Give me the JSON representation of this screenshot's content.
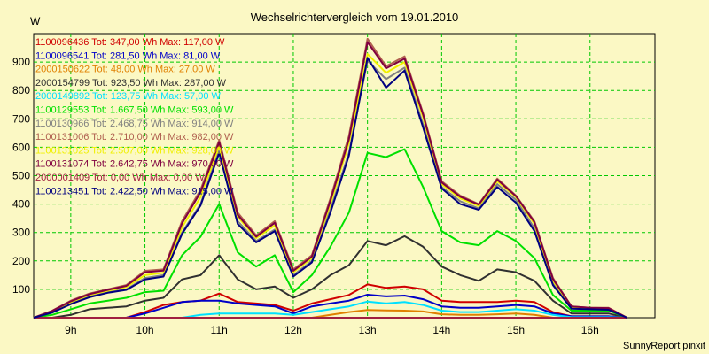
{
  "chart_data": {
    "type": "line",
    "title": "Wechselrichtervergleich vom 19.01.2010",
    "ylabel": "W",
    "xlabel": "",
    "credit": "SunnyReport pinxit",
    "background_color": "#fbf8c4",
    "grid_color": "#00c800",
    "grid": true,
    "legend_placement": "top-left",
    "xlim": [
      8.5,
      16.875
    ],
    "ylim": [
      0,
      1000
    ],
    "x_ticks": [
      9,
      10,
      11,
      12,
      13,
      14,
      15,
      16
    ],
    "x_tick_labels": [
      "9h",
      "10h",
      "11h",
      "12h",
      "13h",
      "14h",
      "15h",
      "16h"
    ],
    "y_ticks": [
      100,
      200,
      300,
      400,
      500,
      600,
      700,
      800,
      900
    ],
    "y_tick_labels": [
      "100",
      "200",
      "300",
      "400",
      "500",
      "600",
      "700",
      "800",
      "900"
    ],
    "x": [
      8.5,
      8.75,
      9.0,
      9.25,
      9.5,
      9.75,
      10.0,
      10.25,
      10.5,
      10.75,
      11.0,
      11.25,
      11.5,
      11.75,
      12.0,
      12.25,
      12.5,
      12.75,
      13.0,
      13.25,
      13.5,
      13.75,
      14.0,
      14.25,
      14.5,
      14.75,
      15.0,
      15.25,
      15.5,
      15.75,
      16.0,
      16.25,
      16.5
    ],
    "series": [
      {
        "name": "1100096436",
        "legend": "1100096436 Tot: 347,00 Wh Max: 117,00 W",
        "color": "#d00000",
        "values": [
          0,
          0,
          0,
          0,
          0,
          0,
          20,
          45,
          55,
          60,
          85,
          55,
          50,
          45,
          25,
          50,
          65,
          80,
          117,
          105,
          110,
          100,
          60,
          55,
          55,
          55,
          60,
          55,
          20,
          5,
          5,
          5,
          0
        ]
      },
      {
        "name": "1100096541",
        "legend": "1100096541 Tot: 281,50 Wh Max: 81,00 W",
        "color": "#0000c8",
        "values": [
          0,
          0,
          0,
          0,
          0,
          0,
          15,
          35,
          55,
          60,
          60,
          50,
          45,
          40,
          15,
          40,
          50,
          60,
          81,
          75,
          78,
          65,
          40,
          35,
          35,
          40,
          45,
          40,
          15,
          5,
          5,
          5,
          0
        ]
      },
      {
        "name": "2000150622",
        "legend": "2000150622 Tot: 48,00 Wh Max: 27,00 W",
        "color": "#e08000",
        "values": [
          0,
          0,
          0,
          0,
          0,
          0,
          0,
          0,
          0,
          0,
          0,
          0,
          0,
          0,
          0,
          0,
          10,
          20,
          27,
          26,
          25,
          22,
          12,
          10,
          10,
          12,
          15,
          10,
          0,
          0,
          0,
          0,
          0
        ]
      },
      {
        "name": "2000154799",
        "legend": "2000154799 Tot: 923,50 Wh Max: 287,00 W",
        "color": "#303030",
        "values": [
          0,
          0,
          10,
          30,
          35,
          40,
          60,
          70,
          135,
          150,
          220,
          135,
          100,
          110,
          70,
          100,
          150,
          185,
          270,
          255,
          287,
          250,
          180,
          150,
          130,
          170,
          160,
          130,
          60,
          15,
          15,
          15,
          0
        ]
      },
      {
        "name": "2000149892",
        "legend": "2000149892 Tot: 123,75 Wh Max: 57,00 W",
        "color": "#00e0ff",
        "values": [
          0,
          0,
          0,
          0,
          0,
          0,
          0,
          0,
          0,
          10,
          15,
          15,
          15,
          15,
          10,
          20,
          30,
          40,
          57,
          50,
          55,
          45,
          25,
          20,
          20,
          25,
          30,
          25,
          10,
          2,
          2,
          2,
          0
        ]
      },
      {
        "name": "1100129553",
        "legend": "1100129553 Tot: 1.667,50 Wh Max: 593,00 W",
        "color": "#00e000",
        "values": [
          0,
          10,
          30,
          50,
          60,
          70,
          90,
          95,
          220,
          285,
          400,
          230,
          180,
          220,
          90,
          150,
          250,
          370,
          580,
          565,
          593,
          460,
          305,
          265,
          255,
          305,
          270,
          210,
          80,
          25,
          25,
          25,
          0
        ]
      },
      {
        "name": "1100130966",
        "legend": "1100130966 Tot: 2.468,75 Wh Max: 914,00 W",
        "color": "#808080",
        "values": [
          0,
          20,
          50,
          75,
          90,
          100,
          140,
          150,
          300,
          400,
          590,
          340,
          270,
          310,
          150,
          200,
          380,
          580,
          905,
          840,
          880,
          680,
          460,
          410,
          385,
          470,
          415,
          315,
          120,
          35,
          35,
          30,
          0
        ]
      },
      {
        "name": "1100131006",
        "legend": "1100131006 Tot: 2.710,00 Wh Max: 982,00 W",
        "color": "#b06050",
        "values": [
          0,
          25,
          60,
          85,
          100,
          115,
          165,
          170,
          340,
          450,
          625,
          370,
          290,
          340,
          170,
          220,
          420,
          640,
          982,
          885,
          920,
          720,
          480,
          430,
          400,
          490,
          430,
          340,
          140,
          40,
          35,
          35,
          0
        ]
      },
      {
        "name": "1100131025",
        "legend": "1100131025 Tot: 2.507,00 Wh Max: 928,00 W",
        "color": "#f0f000",
        "values": [
          0,
          22,
          55,
          80,
          95,
          108,
          150,
          158,
          318,
          425,
          605,
          355,
          280,
          325,
          160,
          210,
          400,
          615,
          928,
          862,
          900,
          705,
          470,
          420,
          393,
          480,
          425,
          330,
          130,
          38,
          34,
          32,
          0
        ]
      },
      {
        "name": "1100131074",
        "legend": "1100131074 Tot: 2.642,75 Wh Max: 970,00 W",
        "color": "#800040",
        "values": [
          0,
          24,
          58,
          83,
          98,
          112,
          160,
          166,
          332,
          442,
          618,
          362,
          285,
          334,
          165,
          215,
          412,
          628,
          970,
          878,
          912,
          715,
          476,
          426,
          398,
          486,
          428,
          336,
          136,
          40,
          35,
          34,
          0
        ]
      },
      {
        "name": "2000001409",
        "legend": "2000001409 Tot: 0,00 Wh Max: 0,00 W",
        "color": "#a02040",
        "values": [
          0,
          0,
          0,
          0,
          0,
          0,
          0,
          0,
          0,
          0,
          0,
          0,
          0,
          0,
          0,
          0,
          0,
          0,
          0,
          0,
          0,
          0,
          0,
          0,
          0,
          0,
          0,
          0,
          0,
          0,
          0,
          0,
          0
        ]
      },
      {
        "name": "1100213451",
        "legend": "1100213451 Tot: 2.422,50 Wh Max: 915,00 W",
        "color": "#000080",
        "values": [
          0,
          18,
          48,
          72,
          88,
          98,
          135,
          145,
          295,
          395,
          580,
          330,
          265,
          305,
          145,
          195,
          370,
          570,
          915,
          810,
          870,
          670,
          455,
          400,
          380,
          460,
          405,
          305,
          115,
          32,
          30,
          28,
          0
        ]
      }
    ]
  }
}
